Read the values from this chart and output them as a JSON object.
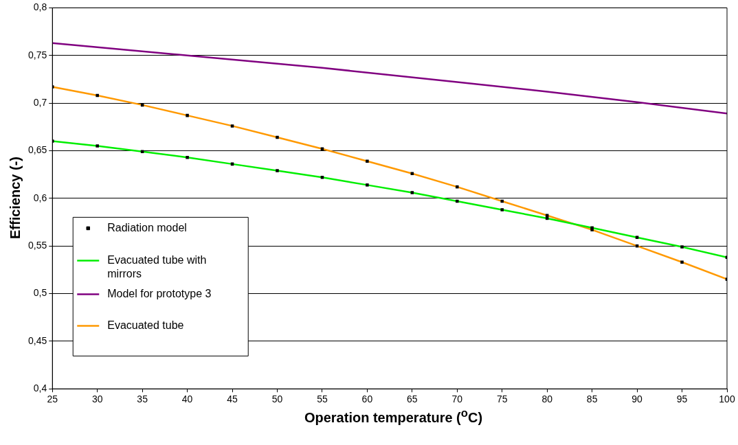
{
  "chart_data": {
    "type": "line",
    "xlabel": "Operation temperature ($^{o}$C)",
    "ylabel": "Efficiency (-)",
    "xlim": [
      25,
      100
    ],
    "xticks": [
      25,
      30,
      35,
      40,
      45,
      50,
      55,
      60,
      65,
      70,
      75,
      80,
      85,
      90,
      95,
      100
    ],
    "ylim": [
      0.4,
      0.8
    ],
    "yticks": [
      {
        "value": 0.4,
        "label": "0,4"
      },
      {
        "value": 0.45,
        "label": "0,45"
      },
      {
        "value": 0.5,
        "label": "0,5"
      },
      {
        "value": 0.55,
        "label": "0,55"
      },
      {
        "value": 0.6,
        "label": "0,6"
      },
      {
        "value": 0.65,
        "label": "0,65"
      },
      {
        "value": 0.7,
        "label": "0,7"
      },
      {
        "value": 0.75,
        "label": "0,75"
      },
      {
        "value": 0.8,
        "label": "0,8"
      }
    ],
    "grid": "y",
    "legend": "bottom left",
    "series": [
      {
        "name": "Radiation model",
        "type": "scatter",
        "marker": "square",
        "color": "#000000",
        "x": [
          25,
          30,
          35,
          40,
          45,
          50,
          55,
          60,
          65,
          70,
          75,
          80,
          85,
          90,
          95,
          100,
          25,
          30,
          35,
          40,
          45,
          50,
          55,
          60,
          65,
          70,
          75,
          80,
          85,
          90,
          95,
          100
        ],
        "values": [
          0.717,
          0.708,
          0.698,
          0.687,
          0.676,
          0.664,
          0.652,
          0.639,
          0.626,
          0.612,
          0.597,
          0.582,
          0.567,
          0.55,
          0.533,
          0.515,
          0.66,
          0.655,
          0.649,
          0.643,
          0.636,
          0.629,
          0.622,
          0.614,
          0.606,
          0.597,
          0.588,
          0.579,
          0.569,
          0.559,
          0.549,
          0.538
        ]
      },
      {
        "name": "Evacuated tube with mirrors",
        "color": "#00ee00",
        "x": [
          25,
          30,
          35,
          40,
          45,
          50,
          55,
          60,
          65,
          70,
          75,
          80,
          85,
          90,
          95,
          100
        ],
        "values": [
          0.66,
          0.655,
          0.649,
          0.643,
          0.636,
          0.629,
          0.622,
          0.614,
          0.606,
          0.597,
          0.588,
          0.579,
          0.569,
          0.559,
          0.549,
          0.538
        ]
      },
      {
        "name": "Model for prototype 3",
        "color": "#800080",
        "x": [
          25,
          40,
          55,
          70,
          80,
          90,
          100
        ],
        "values": [
          0.763,
          0.75,
          0.737,
          0.722,
          0.712,
          0.701,
          0.689
        ]
      },
      {
        "name": "Evacuated tube",
        "color": "#ff9900",
        "x": [
          25,
          30,
          35,
          40,
          45,
          50,
          55,
          60,
          65,
          70,
          75,
          80,
          85,
          90,
          95,
          100
        ],
        "values": [
          0.717,
          0.708,
          0.698,
          0.687,
          0.676,
          0.664,
          0.652,
          0.639,
          0.626,
          0.612,
          0.597,
          0.582,
          0.567,
          0.55,
          0.533,
          0.515
        ]
      }
    ]
  }
}
